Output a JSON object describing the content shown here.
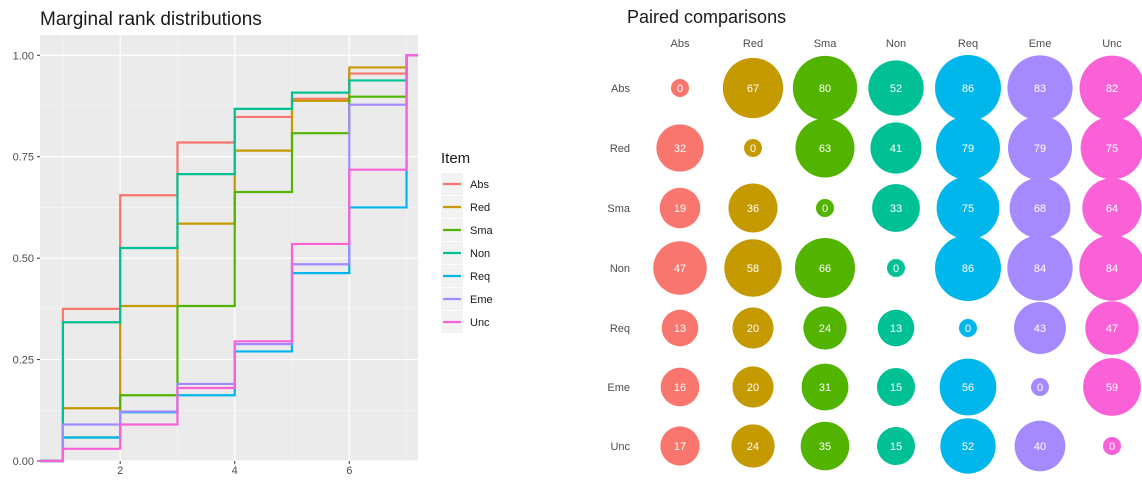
{
  "chart_data": [
    {
      "type": "line",
      "title": "Marginal rank distributions",
      "xlabel": "",
      "ylabel": "",
      "xlim": [
        0.6,
        7.2
      ],
      "ylim": [
        0,
        1.05
      ],
      "x_ticks": [
        2,
        4,
        6
      ],
      "x_tick_labels": [
        "2",
        "4",
        "6"
      ],
      "y_ticks": [
        0,
        0.25,
        0.5,
        0.75,
        1.0
      ],
      "y_tick_labels": [
        "0.00",
        "0.25",
        "0.50",
        "0.75",
        "1.00"
      ],
      "grid": true,
      "panel_background": "#ebebeb",
      "legend": {
        "title": "Item",
        "placement": "right",
        "entries": [
          "Abs",
          "Red",
          "Sma",
          "Non",
          "Req",
          "Eme",
          "Unc"
        ]
      },
      "x": [
        1,
        2,
        3,
        4,
        5,
        6,
        7
      ],
      "series": [
        {
          "name": "Abs",
          "color": "#F8766D",
          "values": [
            0.375,
            0.655,
            0.785,
            0.848,
            0.893,
            0.955,
            1.0
          ]
        },
        {
          "name": "Red",
          "color": "#C49A00",
          "values": [
            0.13,
            0.382,
            0.585,
            0.765,
            0.888,
            0.97,
            1.0
          ]
        },
        {
          "name": "Sma",
          "color": "#53B400",
          "values": [
            0.058,
            0.162,
            0.382,
            0.663,
            0.808,
            0.898,
            1.0
          ]
        },
        {
          "name": "Non",
          "color": "#00C094",
          "values": [
            0.342,
            0.525,
            0.707,
            0.868,
            0.908,
            0.938,
            1.0
          ]
        },
        {
          "name": "Req",
          "color": "#00B6EB",
          "values": [
            0.058,
            0.12,
            0.162,
            0.27,
            0.463,
            0.625,
            1.0
          ]
        },
        {
          "name": "Eme",
          "color": "#A58AFF",
          "values": [
            0.09,
            0.122,
            0.19,
            0.288,
            0.485,
            0.878,
            1.0
          ]
        },
        {
          "name": "Unc",
          "color": "#FB61D7",
          "values": [
            0.03,
            0.09,
            0.18,
            0.295,
            0.535,
            0.718,
            1.0
          ]
        }
      ]
    },
    {
      "type": "heatmap",
      "title": "Paired comparisons",
      "subtype": "bubble",
      "grid": false,
      "columns": [
        "Abs",
        "Red",
        "Sma",
        "Non",
        "Req",
        "Eme",
        "Unc"
      ],
      "rows": [
        "Abs",
        "Red",
        "Sma",
        "Non",
        "Req",
        "Eme",
        "Unc"
      ],
      "column_colors": [
        "#F8766D",
        "#C49A00",
        "#53B400",
        "#00C094",
        "#00B6EB",
        "#A58AFF",
        "#FB61D7"
      ],
      "values": [
        [
          0,
          67,
          80,
          52,
          86,
          83,
          82
        ],
        [
          32,
          0,
          63,
          41,
          79,
          79,
          75
        ],
        [
          19,
          36,
          0,
          33,
          75,
          68,
          64
        ],
        [
          47,
          58,
          66,
          0,
          86,
          84,
          84
        ],
        [
          13,
          20,
          24,
          13,
          0,
          43,
          47
        ],
        [
          16,
          20,
          31,
          15,
          56,
          0,
          59
        ],
        [
          17,
          24,
          35,
          15,
          52,
          40,
          0
        ]
      ]
    }
  ]
}
